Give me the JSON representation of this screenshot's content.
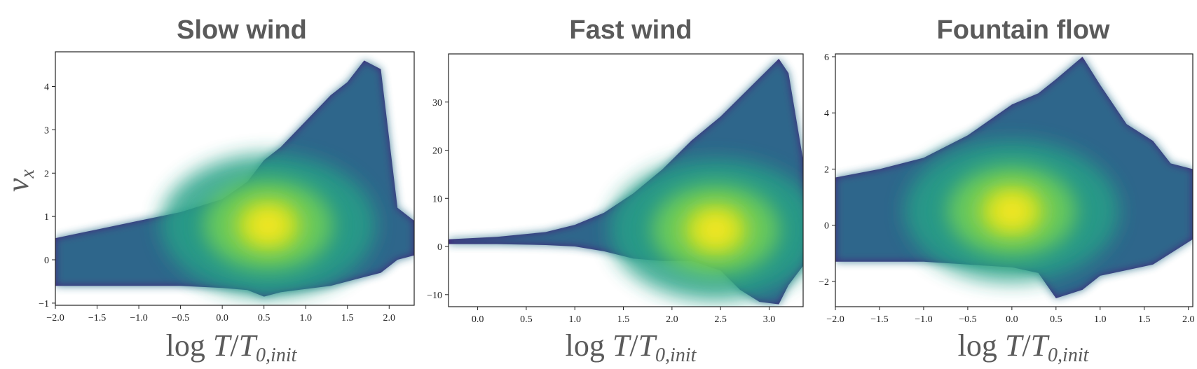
{
  "chart_data": [
    {
      "type": "heatmap",
      "title": "Slow wind",
      "xlabel": {
        "main": "log ",
        "var1": "T",
        "slash": "/",
        "var2": "T",
        "sub": "0,init"
      },
      "ylabel": {
        "main": "v",
        "sub": "x"
      },
      "xlim": [
        -2.0,
        2.3
      ],
      "ylim": [
        -1.05,
        4.8
      ],
      "xticks": [
        -2.0,
        -1.5,
        -1.0,
        -0.5,
        0.0,
        0.5,
        1.0,
        1.5,
        2.0
      ],
      "xtick_labels": [
        "−2.0",
        "−1.5",
        "−1.0",
        "−0.5",
        "0.0",
        "0.5",
        "1.0",
        "1.5",
        "2.0"
      ],
      "yticks": [
        -1,
        0,
        1,
        2,
        3,
        4
      ],
      "ytick_labels": [
        "−1",
        "0",
        "1",
        "2",
        "3",
        "4"
      ],
      "colormap": "viridis",
      "density_peak": {
        "x": 0.55,
        "y": 0.8
      },
      "envelope": {
        "x": [
          -2.0,
          -1.5,
          -1.0,
          -0.5,
          0.0,
          0.3,
          0.5,
          0.7,
          0.9,
          1.1,
          1.3,
          1.5,
          1.7,
          1.9,
          2.1,
          2.3
        ],
        "lower": [
          -0.6,
          -0.6,
          -0.6,
          -0.6,
          -0.65,
          -0.7,
          -0.85,
          -0.75,
          -0.7,
          -0.65,
          -0.6,
          -0.5,
          -0.4,
          -0.3,
          0.0,
          0.1
        ],
        "upper": [
          0.5,
          0.7,
          0.9,
          1.1,
          1.4,
          1.8,
          2.3,
          2.6,
          3.0,
          3.4,
          3.8,
          4.1,
          4.6,
          4.4,
          1.2,
          0.9
        ]
      }
    },
    {
      "type": "heatmap",
      "title": "Fast wind",
      "xlabel": {
        "main": "log ",
        "var1": "T",
        "slash": "/",
        "var2": "T",
        "sub": "0,init"
      },
      "xlim": [
        -0.3,
        3.35
      ],
      "ylim": [
        -12.5,
        40
      ],
      "xticks": [
        0.0,
        0.5,
        1.0,
        1.5,
        2.0,
        2.5,
        3.0
      ],
      "xtick_labels": [
        "0.0",
        "0.5",
        "1.0",
        "1.5",
        "2.0",
        "2.5",
        "3.0"
      ],
      "yticks": [
        -10,
        0,
        10,
        20,
        30
      ],
      "ytick_labels": [
        "−10",
        "0",
        "10",
        "20",
        "30"
      ],
      "colormap": "viridis",
      "density_peak": {
        "x": 2.45,
        "y": 3.5
      },
      "envelope": {
        "x": [
          -0.3,
          0.2,
          0.7,
          1.0,
          1.3,
          1.6,
          1.9,
          2.2,
          2.5,
          2.7,
          2.9,
          3.1,
          3.2,
          3.35
        ],
        "lower": [
          0.5,
          0.5,
          0.3,
          0.0,
          -1.0,
          -2.5,
          -3.0,
          -3.0,
          -5.0,
          -9.0,
          -11.5,
          -12.0,
          -8.0,
          -4.0
        ],
        "upper": [
          1.5,
          2.0,
          3.0,
          4.5,
          7.0,
          11.0,
          16.0,
          22.0,
          27.0,
          31.0,
          35.0,
          39.0,
          36.0,
          18.0
        ]
      }
    },
    {
      "type": "heatmap",
      "title": "Fountain flow",
      "xlabel": {
        "main": "log ",
        "var1": "T",
        "slash": "/",
        "var2": "T",
        "sub": "0,init"
      },
      "xlim": [
        -2.0,
        2.05
      ],
      "ylim": [
        -2.9,
        6.1
      ],
      "xticks": [
        -2.0,
        -1.5,
        -1.0,
        -0.5,
        0.0,
        0.5,
        1.0,
        1.5,
        2.0
      ],
      "xtick_labels": [
        "−2.0",
        "−1.5",
        "−1.0",
        "−0.5",
        "0.0",
        "0.5",
        "1.0",
        "1.5",
        "2.0"
      ],
      "yticks": [
        -2,
        0,
        2,
        4,
        6
      ],
      "ytick_labels": [
        "−2",
        "0",
        "2",
        "4",
        "6"
      ],
      "colormap": "viridis",
      "density_peak": {
        "x": 0.0,
        "y": 0.5
      },
      "envelope": {
        "x": [
          -2.0,
          -1.5,
          -1.0,
          -0.5,
          0.0,
          0.3,
          0.5,
          0.8,
          1.0,
          1.3,
          1.6,
          1.8,
          2.05
        ],
        "lower": [
          -1.3,
          -1.3,
          -1.3,
          -1.4,
          -1.5,
          -1.7,
          -2.6,
          -2.3,
          -1.8,
          -1.6,
          -1.4,
          -1.0,
          -0.5
        ],
        "upper": [
          1.7,
          2.0,
          2.4,
          3.2,
          4.3,
          4.7,
          5.2,
          6.0,
          5.0,
          3.6,
          3.0,
          2.2,
          2.0
        ]
      }
    }
  ]
}
